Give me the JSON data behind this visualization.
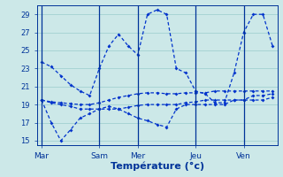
{
  "title": "Température (°c)",
  "bg_color": "#cce8e8",
  "line_color": "#0033cc",
  "grid_color": "#99cccc",
  "axis_color": "#003399",
  "ylim": [
    14.5,
    30.0
  ],
  "yticks": [
    15,
    17,
    19,
    21,
    23,
    25,
    27,
    29
  ],
  "day_labels": [
    "Mar",
    "Sam",
    "Mer",
    "Jeu",
    "Ven"
  ],
  "day_x": [
    0,
    6,
    10,
    16,
    21
  ],
  "n_points": 25,
  "series": [
    [
      23.7,
      23.2,
      22.2,
      21.2,
      20.5,
      20.0,
      23.0,
      25.5,
      26.8,
      25.5,
      24.5,
      29.0,
      29.5,
      29.0,
      23.0,
      22.5,
      20.5,
      20.2,
      19.2,
      19.2,
      22.5,
      27.0,
      29.0,
      29.0,
      25.5
    ],
    [
      19.5,
      19.3,
      19.2,
      19.1,
      19.0,
      19.0,
      19.2,
      19.5,
      19.8,
      20.0,
      20.2,
      20.3,
      20.3,
      20.2,
      20.2,
      20.3,
      20.3,
      20.3,
      20.5,
      20.5,
      20.5,
      20.5,
      20.5,
      20.5,
      20.5
    ],
    [
      19.5,
      19.2,
      19.0,
      18.8,
      18.5,
      18.5,
      18.5,
      18.5,
      18.5,
      18.7,
      18.9,
      19.0,
      19.0,
      19.0,
      19.0,
      19.2,
      19.3,
      19.5,
      19.5,
      19.5,
      19.5,
      19.5,
      19.5,
      19.5,
      19.8
    ],
    [
      19.5,
      17.0,
      15.0,
      16.2,
      17.5,
      18.0,
      18.5,
      18.8,
      18.5,
      18.0,
      17.5,
      17.2,
      16.8,
      16.5,
      18.5,
      19.0,
      19.0,
      19.0,
      19.0,
      19.0,
      19.5,
      19.5,
      20.0,
      20.0,
      20.2
    ]
  ]
}
